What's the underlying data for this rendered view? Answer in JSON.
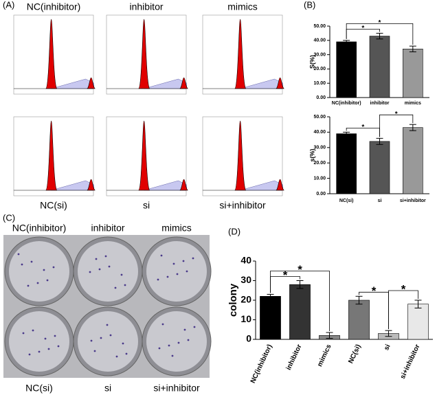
{
  "panel_labels": [
    "(A)",
    "(B)",
    "(C)",
    "(D)"
  ],
  "flow_labels": [
    "NC(inhibitor)",
    "inhibitor",
    "mimics",
    "NC(si)",
    "si",
    "si+inhibitor"
  ],
  "plate_labels": [
    "NC(inhibitor)",
    "inhibitor",
    "mimics",
    "NC(si)",
    "si",
    "si+inhibitor"
  ],
  "chart_data": [
    {
      "type": "bar",
      "y_label": "S(%)",
      "categories": [
        "NC(inhibitor)",
        "inhibitor",
        "mimics"
      ],
      "values": [
        39,
        43,
        34
      ],
      "errors": [
        1,
        2,
        2
      ],
      "colors": [
        "#000000",
        "#555555",
        "#999999"
      ],
      "ylim": [
        0,
        50
      ],
      "yticks": [
        {
          "value": 0,
          "label": "0.00"
        },
        {
          "value": 10,
          "label": "10.00"
        },
        {
          "value": 20,
          "label": "20.00"
        },
        {
          "value": 30,
          "label": "30.00"
        },
        {
          "value": 40,
          "label": "40.00"
        },
        {
          "value": 50,
          "label": "50.00"
        }
      ],
      "significance": [
        {
          "from": 0,
          "to": 1,
          "label": "*"
        },
        {
          "from": 0,
          "to": 2,
          "label": "*"
        }
      ]
    },
    {
      "type": "bar",
      "y_label": "s(%)",
      "categories": [
        "NC(si)",
        "si",
        "si+inhibitor"
      ],
      "values": [
        39,
        34,
        43
      ],
      "errors": [
        1,
        2,
        2
      ],
      "colors": [
        "#000000",
        "#555555",
        "#999999"
      ],
      "ylim": [
        0,
        50
      ],
      "yticks": [
        {
          "value": 0,
          "label": "0.00"
        },
        {
          "value": 10,
          "label": "10.00"
        },
        {
          "value": 20,
          "label": "20.00"
        },
        {
          "value": 30,
          "label": "30.00"
        },
        {
          "value": 40,
          "label": "40.00"
        },
        {
          "value": 50,
          "label": "50.00"
        }
      ],
      "significance": [
        {
          "from": 0,
          "to": 1,
          "label": "*"
        },
        {
          "from": 1,
          "to": 2,
          "label": "*"
        }
      ]
    },
    {
      "type": "bar",
      "y_label": "colony",
      "categories": [
        "NC(inhibitor)",
        "inhibitor",
        "mimics",
        "NC(si)",
        "si",
        "si+inhibitor"
      ],
      "values": [
        22,
        28,
        2,
        20,
        3,
        18
      ],
      "errors": [
        1,
        2,
        1.5,
        2,
        1.5,
        2
      ],
      "colors": [
        "#000000",
        "#333333",
        "#888888",
        "#777777",
        "#bbbbbb",
        "#e8e8e8"
      ],
      "ylim": [
        0,
        40
      ],
      "yticks": [
        0,
        10,
        20,
        30,
        40
      ],
      "significance": [
        {
          "from": 0,
          "to": 1,
          "label": "*"
        },
        {
          "from": 0,
          "to": 2,
          "label": "*"
        },
        {
          "from": 3,
          "to": 4,
          "label": "*"
        },
        {
          "from": 4,
          "to": 5,
          "label": "*"
        }
      ]
    }
  ]
}
